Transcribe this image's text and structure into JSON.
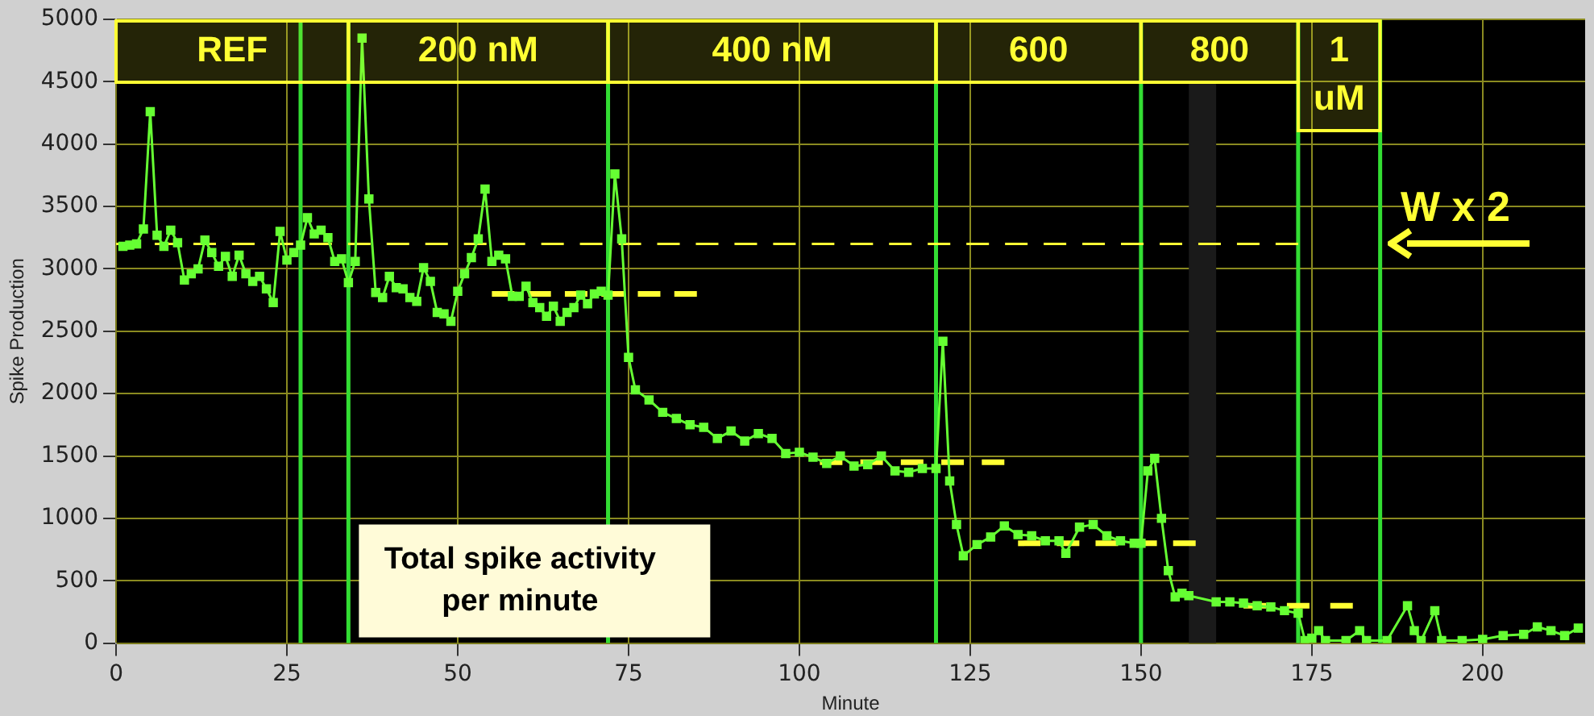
{
  "chart_data": {
    "type": "line",
    "xlabel": "Minute",
    "ylabel": "Spike Production",
    "xlim": [
      0,
      215
    ],
    "xticks": [
      0,
      25,
      50,
      75,
      100,
      125,
      150,
      175,
      200
    ],
    "ylim": [
      0,
      5000
    ],
    "yticks": [
      0,
      500,
      1000,
      1500,
      2000,
      2500,
      3000,
      3500,
      4000,
      4500,
      5000
    ],
    "grid": true,
    "legend": false,
    "series": [
      {
        "type": "line",
        "color": "#66ff33",
        "marker": "square",
        "x": [
          1,
          2,
          3,
          4,
          5,
          6,
          7,
          8,
          9,
          10,
          11,
          12,
          13,
          14,
          15,
          16,
          17,
          18,
          19,
          20,
          21,
          22,
          23,
          24,
          25,
          26,
          27,
          28,
          29,
          30,
          31,
          32,
          33,
          34,
          35,
          36,
          37,
          38,
          39,
          40,
          41,
          42,
          43,
          44,
          45,
          46,
          47,
          48,
          49,
          50,
          51,
          52,
          53,
          54,
          55,
          56,
          57,
          58,
          59,
          60,
          61,
          62,
          63,
          64,
          65,
          66,
          67,
          68,
          69,
          70,
          71,
          72,
          73,
          74,
          75,
          76,
          78,
          80,
          82,
          84,
          86,
          88,
          90,
          92,
          94,
          96,
          98,
          100,
          102,
          104,
          106,
          108,
          110,
          112,
          114,
          116,
          118,
          120,
          121,
          122,
          123,
          124,
          126,
          128,
          130,
          132,
          134,
          136,
          138,
          139,
          141,
          143,
          145,
          147,
          149,
          150,
          151,
          152,
          153,
          154,
          155,
          156,
          157,
          161,
          163,
          165,
          167,
          169,
          171,
          173,
          174,
          175,
          176,
          177,
          180,
          182,
          183,
          186,
          189,
          190,
          191,
          193,
          194,
          197,
          200,
          203,
          206,
          208,
          210,
          212,
          214
        ],
        "values": [
          3180,
          3190,
          3200,
          3320,
          4260,
          3270,
          3180,
          3310,
          3210,
          2910,
          2960,
          3000,
          3230,
          3130,
          3020,
          3100,
          2940,
          3110,
          2960,
          2900,
          2940,
          2840,
          2730,
          3300,
          3070,
          3130,
          3190,
          3410,
          3280,
          3310,
          3250,
          3060,
          3080,
          2890,
          3060,
          4850,
          3560,
          2810,
          2770,
          2940,
          2850,
          2840,
          2770,
          2740,
          3010,
          2900,
          2650,
          2640,
          2580,
          2820,
          2960,
          3090,
          3240,
          3640,
          3060,
          3110,
          3080,
          2780,
          2780,
          2860,
          2730,
          2690,
          2620,
          2700,
          2580,
          2650,
          2690,
          2790,
          2720,
          2800,
          2820,
          2790,
          3760,
          3240,
          2290,
          2030,
          1950,
          1850,
          1800,
          1750,
          1730,
          1640,
          1700,
          1620,
          1680,
          1640,
          1520,
          1530,
          1490,
          1440,
          1500,
          1420,
          1430,
          1500,
          1380,
          1370,
          1400,
          1400,
          2420,
          1300,
          950,
          700,
          790,
          850,
          940,
          870,
          860,
          820,
          820,
          720,
          930,
          950,
          860,
          820,
          800,
          800,
          1380,
          1480,
          1000,
          580,
          370,
          400,
          380,
          330,
          330,
          320,
          300,
          290,
          260,
          240,
          20,
          40,
          100,
          20,
          20,
          100,
          20,
          20,
          300,
          100,
          20,
          260,
          20,
          20,
          30,
          60,
          70,
          130,
          100,
          60,
          120
        ]
      },
      {
        "type": "line",
        "color": "#ffff33",
        "marker": "none",
        "line_style": "dashed",
        "x": [
          0,
          173
        ],
        "values": [
          3200,
          3200
        ]
      },
      {
        "type": "line",
        "color": "#ffff33",
        "marker": "none",
        "line_style": "dashed",
        "x": [
          55,
          85
        ],
        "values": [
          2800,
          2800
        ]
      },
      {
        "type": "line",
        "color": "#ffff33",
        "marker": "none",
        "line_style": "dashed",
        "x": [
          103,
          130
        ],
        "values": [
          1450,
          1450
        ]
      },
      {
        "type": "line",
        "color": "#ffff33",
        "marker": "none",
        "line_style": "dashed",
        "x": [
          132,
          158
        ],
        "values": [
          800,
          800
        ]
      },
      {
        "type": "line",
        "color": "#ffff33",
        "marker": "none",
        "line_style": "dashed",
        "x": [
          165,
          181
        ],
        "values": [
          300,
          300
        ]
      }
    ],
    "ref_lines": [
      {
        "axis": "x",
        "value": 27,
        "color": "#33dd33"
      },
      {
        "axis": "x",
        "value": 34,
        "color": "#33dd33"
      },
      {
        "axis": "x",
        "value": 72,
        "color": "#33dd33"
      },
      {
        "axis": "x",
        "value": 120,
        "color": "#33dd33"
      },
      {
        "axis": "x",
        "value": 150,
        "color": "#33dd33"
      },
      {
        "axis": "x",
        "value": 173,
        "color": "#33dd33"
      },
      {
        "axis": "x",
        "value": 185,
        "color": "#33dd33"
      }
    ],
    "bands": [
      {
        "axis": "x",
        "from": 157,
        "to": 161,
        "color": "#1a1a1a"
      },
      {
        "axis": "x",
        "from": 0,
        "to": 34,
        "label": "REF",
        "color": "#ffff33"
      },
      {
        "axis": "x",
        "from": 34,
        "to": 72,
        "label": "200 nM",
        "color": "#ffff33"
      },
      {
        "axis": "x",
        "from": 72,
        "to": 120,
        "label": "400 nM",
        "color": "#ffff33"
      },
      {
        "axis": "x",
        "from": 120,
        "to": 150,
        "label": "600",
        "color": "#ffff33"
      },
      {
        "axis": "x",
        "from": 150,
        "to": 173,
        "label": "800",
        "color": "#ffff33"
      },
      {
        "axis": "x",
        "from": 173,
        "to": 185,
        "label": "1 uM",
        "color": "#ffff33"
      }
    ],
    "annotations": [
      "W x 2",
      "Total spike activity per minute"
    ]
  }
}
